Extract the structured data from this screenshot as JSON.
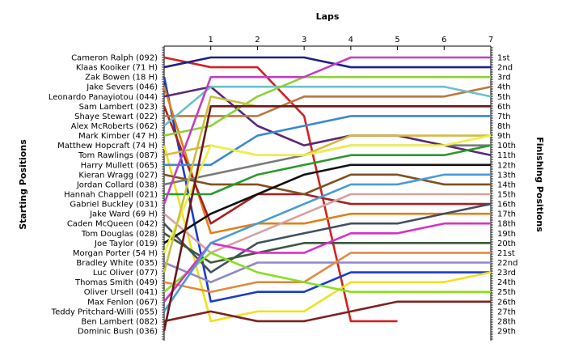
{
  "chart_data": {
    "type": "line",
    "title": "",
    "xlabel": "Laps",
    "ylabel_left": "Starting Positions",
    "ylabel_right": "Finishing Positions",
    "x_ticks": [
      "1",
      "2",
      "3",
      "4",
      "5",
      "6",
      "7"
    ],
    "xlim": [
      0,
      7
    ],
    "ylim": [
      29,
      1
    ],
    "grid": false,
    "position_labels": [
      "1st",
      "2nd",
      "3rd",
      "4th",
      "5th",
      "6th",
      "7th",
      "8th",
      "9th",
      "10th",
      "11th",
      "12th",
      "13th",
      "14th",
      "15th",
      "16th",
      "17th",
      "18th",
      "19th",
      "20th",
      "21st",
      "22nd",
      "23rd",
      "24th",
      "25th",
      "26th",
      "27th",
      "28th",
      "29th"
    ],
    "series": [
      {
        "name": "Cameron Ralph (092)",
        "color": "#d42020",
        "values": [
          1,
          2,
          2,
          7,
          28,
          28
        ]
      },
      {
        "name": "Klaas Kooiker (71 H)",
        "color": "#20208a",
        "values": [
          2,
          1,
          1,
          1,
          2,
          2,
          2,
          2
        ]
      },
      {
        "name": "Zak Bowen (18 H)",
        "color": "#1a3cc8",
        "values": [
          3,
          26,
          25,
          25,
          23,
          23,
          23,
          23
        ]
      },
      {
        "name": "Jake Severs (046)",
        "color": "#e08018",
        "values": [
          4,
          19,
          18,
          18,
          17,
          17,
          17,
          17
        ]
      },
      {
        "name": "Leonardo Panayiotou (044)",
        "color": "#5a2878",
        "values": [
          5,
          4,
          8,
          10,
          9,
          9,
          10,
          11
        ]
      },
      {
        "name": "Sam Lambert (023)",
        "color": "#a82020",
        "values": [
          6,
          18,
          15,
          15,
          16,
          16,
          16,
          16
        ]
      },
      {
        "name": "Shaye Stewart (022)",
        "color": "#b87840",
        "values": [
          7,
          7,
          7,
          5,
          5,
          5,
          5,
          4
        ]
      },
      {
        "name": "Alex McRoberts (062)",
        "color": "#6cc0c8",
        "values": [
          8,
          4,
          4,
          4,
          4,
          4,
          4,
          5
        ]
      },
      {
        "name": "Mark Kimber (47 H)",
        "color": "#8ed03a",
        "values": [
          9,
          8,
          5,
          3,
          3,
          3,
          3,
          3
        ]
      },
      {
        "name": "Matthew Hopcraft (74 H)",
        "color": "#f0e020",
        "values": [
          10,
          28,
          27,
          27,
          24,
          24,
          24,
          23
        ]
      },
      {
        "name": "Tom Rawlings (087)",
        "color": "#d8b840",
        "values": [
          11,
          10,
          11,
          11,
          9,
          9,
          9,
          9
        ]
      },
      {
        "name": "Harry Mullett (065)",
        "color": "#3c88d0",
        "values": [
          12,
          12,
          9,
          8,
          7,
          7,
          7,
          7
        ]
      },
      {
        "name": "Kieran Wragg (027)",
        "color": "#805020",
        "values": [
          13,
          14,
          14,
          15,
          13,
          13,
          14,
          14
        ]
      },
      {
        "name": "Jordan Collard (038)",
        "color": "#7a7a7a",
        "values": [
          14,
          13,
          12,
          11,
          10,
          10,
          10,
          10
        ]
      },
      {
        "name": "Hannah Chappell (021)",
        "color": "#2a9a2a",
        "values": [
          15,
          15,
          13,
          12,
          11,
          11,
          11,
          10
        ]
      },
      {
        "name": "Gabriel Buckley (031)",
        "color": "#c040c0",
        "values": [
          16,
          3,
          3,
          3,
          1,
          1,
          1,
          1
        ]
      },
      {
        "name": "Jake Ward (69 H)",
        "color": "#d8a0a0",
        "values": [
          17,
          21,
          19,
          17,
          15,
          15,
          15,
          15
        ]
      },
      {
        "name": "Caden McQueen (042)",
        "color": "#405060",
        "values": [
          18,
          23,
          20,
          19,
          18,
          18,
          17,
          16
        ]
      },
      {
        "name": "Tom Douglas (028)",
        "color": "#3a5a3a",
        "values": [
          19,
          22,
          21,
          20,
          20,
          20,
          20,
          20
        ]
      },
      {
        "name": "Joe Taylor (019)",
        "color": "#101010",
        "values": [
          20,
          17,
          15,
          13,
          12,
          12,
          12,
          12
        ]
      },
      {
        "name": "Morgan Porter (54 H)",
        "color": "#f0f040",
        "values": [
          21,
          10,
          11,
          11,
          10,
          10,
          10,
          9
        ]
      },
      {
        "name": "Bradley White (035)",
        "color": "#9088c8",
        "values": [
          22,
          24,
          22,
          22,
          22,
          22,
          22,
          22
        ]
      },
      {
        "name": "Luc Oliver (077)",
        "color": "#c8c040",
        "values": [
          23,
          5,
          6,
          6,
          6,
          6,
          6,
          6
        ]
      },
      {
        "name": "Thomas Smith (049)",
        "color": "#e08a40",
        "values": [
          24,
          25,
          24,
          24,
          21,
          21,
          21,
          21
        ]
      },
      {
        "name": "Oliver Ursell (041)",
        "color": "#88e020",
        "values": [
          25,
          21,
          23,
          24,
          25,
          25,
          25,
          25
        ]
      },
      {
        "name": "Max Fenlon (067)",
        "color": "#d830c8",
        "values": [
          26,
          20,
          21,
          21,
          19,
          19,
          18,
          18
        ]
      },
      {
        "name": "Teddy Pritchard-Willi (055)",
        "color": "#4a9ad8",
        "values": [
          27,
          20,
          18,
          16,
          14,
          14,
          13,
          13
        ]
      },
      {
        "name": "Ben Lambert (082)",
        "color": "#802020",
        "values": [
          28,
          27,
          28,
          28,
          27,
          26,
          26,
          26
        ]
      },
      {
        "name": "Dominic Bush (036)",
        "color": "#6a1818",
        "values": [
          29,
          6,
          6,
          6,
          6,
          6,
          6,
          6
        ]
      }
    ]
  }
}
